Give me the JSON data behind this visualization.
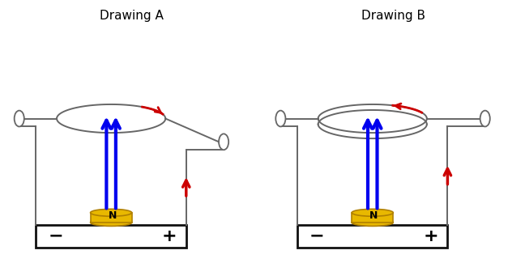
{
  "title_A": "Drawing A",
  "title_B": "Drawing B",
  "bg_color": "#ffffff",
  "wire_color": "#666666",
  "blue_color": "#0000ee",
  "red_color": "#cc0000",
  "magnet_color_face": "#e8b800",
  "magnet_color_edge": "#b08000",
  "battery_outline": "#111111",
  "text_color": "#000000",
  "lw_wire": 1.4,
  "lw_blue": 3.0,
  "lw_red": 2.0
}
